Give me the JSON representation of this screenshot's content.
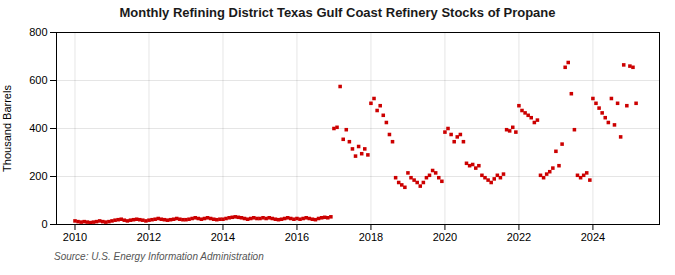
{
  "chart_data": {
    "type": "scatter",
    "title": "Monthly Refining District Texas Gulf Coast Refinery Stocks of Propane",
    "ylabel": "Thousand Barrels",
    "source": "Source: U.S. Energy Information Administration",
    "color": "#cc0000",
    "marker": "square",
    "grid": true,
    "xlim": [
      2009.5,
      2025.8
    ],
    "xticks": [
      2010,
      2012,
      2014,
      2016,
      2018,
      2020,
      2022,
      2024
    ],
    "ylim": [
      0,
      800
    ],
    "yticks": [
      0,
      200,
      400,
      600,
      800
    ],
    "x": [
      2010.0,
      2010.083,
      2010.167,
      2010.25,
      2010.333,
      2010.417,
      2010.5,
      2010.583,
      2010.667,
      2010.75,
      2010.833,
      2010.917,
      2011.0,
      2011.083,
      2011.167,
      2011.25,
      2011.333,
      2011.417,
      2011.5,
      2011.583,
      2011.667,
      2011.75,
      2011.833,
      2011.917,
      2012.0,
      2012.083,
      2012.167,
      2012.25,
      2012.333,
      2012.417,
      2012.5,
      2012.583,
      2012.667,
      2012.75,
      2012.833,
      2012.917,
      2013.0,
      2013.083,
      2013.167,
      2013.25,
      2013.333,
      2013.417,
      2013.5,
      2013.583,
      2013.667,
      2013.75,
      2013.833,
      2013.917,
      2014.0,
      2014.083,
      2014.167,
      2014.25,
      2014.333,
      2014.417,
      2014.5,
      2014.583,
      2014.667,
      2014.75,
      2014.833,
      2014.917,
      2015.0,
      2015.083,
      2015.167,
      2015.25,
      2015.333,
      2015.417,
      2015.5,
      2015.583,
      2015.667,
      2015.75,
      2015.833,
      2015.917,
      2016.0,
      2016.083,
      2016.167,
      2016.25,
      2016.333,
      2016.417,
      2016.5,
      2016.583,
      2016.667,
      2016.75,
      2016.833,
      2016.917,
      2017.0,
      2017.083,
      2017.167,
      2017.25,
      2017.333,
      2017.417,
      2017.5,
      2017.583,
      2017.667,
      2017.75,
      2017.833,
      2017.917,
      2018.0,
      2018.083,
      2018.167,
      2018.25,
      2018.333,
      2018.417,
      2018.5,
      2018.583,
      2018.667,
      2018.75,
      2018.833,
      2018.917,
      2019.0,
      2019.083,
      2019.167,
      2019.25,
      2019.333,
      2019.417,
      2019.5,
      2019.583,
      2019.667,
      2019.75,
      2019.833,
      2019.917,
      2020.0,
      2020.083,
      2020.167,
      2020.25,
      2020.333,
      2020.417,
      2020.5,
      2020.583,
      2020.667,
      2020.75,
      2020.833,
      2020.917,
      2021.0,
      2021.083,
      2021.167,
      2021.25,
      2021.333,
      2021.417,
      2021.5,
      2021.583,
      2021.667,
      2021.75,
      2021.833,
      2021.917,
      2022.0,
      2022.083,
      2022.167,
      2022.25,
      2022.333,
      2022.417,
      2022.5,
      2022.583,
      2022.667,
      2022.75,
      2022.833,
      2022.917,
      2023.0,
      2023.083,
      2023.167,
      2023.25,
      2023.333,
      2023.417,
      2023.5,
      2023.583,
      2023.667,
      2023.75,
      2023.833,
      2023.917,
      2024.0,
      2024.083,
      2024.167,
      2024.25,
      2024.333,
      2024.417,
      2024.5,
      2024.583,
      2024.667,
      2024.75,
      2024.833,
      2024.917,
      2025.0,
      2025.083,
      2025.167
    ],
    "values": [
      15,
      12,
      10,
      12,
      10,
      8,
      10,
      12,
      15,
      12,
      10,
      12,
      15,
      18,
      20,
      22,
      18,
      15,
      18,
      20,
      22,
      20,
      18,
      15,
      18,
      20,
      22,
      25,
      22,
      20,
      18,
      20,
      22,
      25,
      22,
      20,
      20,
      22,
      25,
      28,
      25,
      22,
      25,
      28,
      25,
      22,
      20,
      22,
      22,
      25,
      28,
      30,
      32,
      30,
      28,
      25,
      22,
      25,
      28,
      25,
      25,
      28,
      25,
      28,
      25,
      22,
      20,
      22,
      25,
      28,
      25,
      22,
      25,
      22,
      25,
      28,
      25,
      22,
      20,
      25,
      28,
      30,
      28,
      32,
      400,
      405,
      575,
      355,
      395,
      345,
      315,
      285,
      325,
      295,
      315,
      290,
      505,
      525,
      475,
      495,
      455,
      425,
      375,
      345,
      195,
      175,
      165,
      155,
      215,
      195,
      185,
      175,
      160,
      175,
      195,
      205,
      225,
      215,
      195,
      180,
      385,
      400,
      375,
      345,
      365,
      375,
      345,
      255,
      245,
      250,
      235,
      245,
      205,
      195,
      185,
      175,
      190,
      205,
      195,
      210,
      395,
      390,
      405,
      385,
      495,
      475,
      465,
      455,
      445,
      425,
      435,
      205,
      195,
      210,
      220,
      235,
      305,
      245,
      335,
      655,
      675,
      545,
      395,
      205,
      195,
      205,
      215,
      185,
      525,
      505,
      485,
      465,
      445,
      425,
      525,
      415,
      505,
      365,
      665,
      495,
      660,
      655,
      505
    ]
  }
}
